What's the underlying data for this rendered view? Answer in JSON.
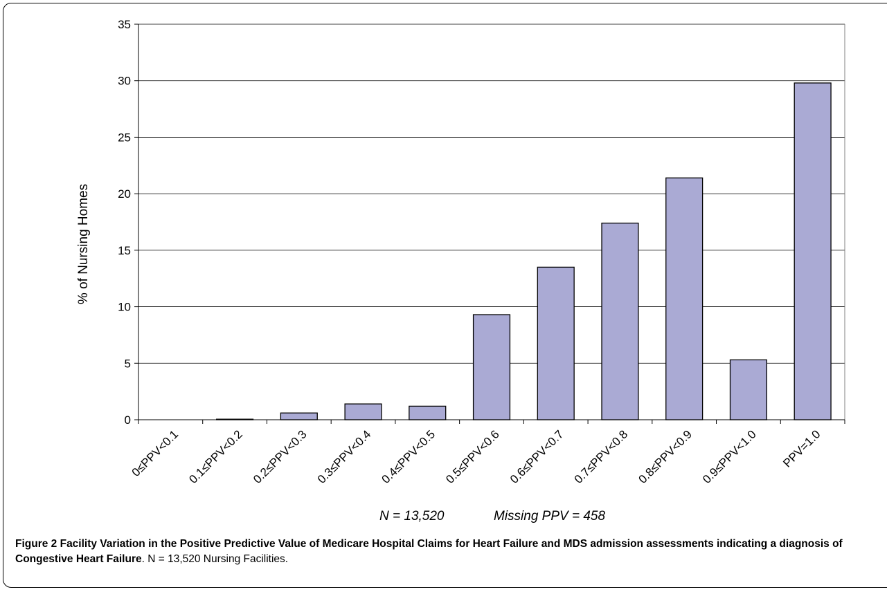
{
  "chart_data": {
    "type": "bar",
    "categories": [
      "0≤PPV<0.1",
      "0.1≤PPV<0.2",
      "0.2≤PPV<0.3",
      "0.3≤PPV<0.4",
      "0.4≤PPV<0.5",
      "0.5≤PPV<0.6",
      "0.6≤PPV<0.7",
      "0.7≤PPV<0.8",
      "0.8≤PPV<0.9",
      "0.9≤PPV<1.0",
      "PPV=1.0"
    ],
    "values": [
      0,
      0.05,
      0.6,
      1.4,
      1.2,
      9.3,
      13.5,
      17.4,
      21.4,
      5.3,
      29.8
    ],
    "ylabel": "% of Nursing Homes",
    "ylim": [
      0,
      35
    ],
    "yticks": [
      0,
      5,
      10,
      15,
      20,
      25,
      30,
      35
    ],
    "grid": true,
    "bar_color": "#aaaad4",
    "annotation_n": "N = 13,520",
    "annotation_missing": "Missing PPV = 458"
  },
  "caption": {
    "bold": "Figure 2 Facility Variation in the Positive Predictive Value of Medicare Hospital Claims for Heart Failure and MDS admission assessments indicating a diagnosis of Congestive Heart Failure",
    "rest": ". N = 13,520 Nursing Facilities."
  }
}
